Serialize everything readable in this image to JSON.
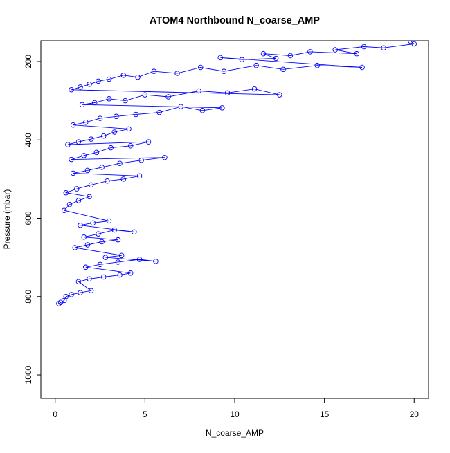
{
  "chart_data": {
    "type": "scatter",
    "title": "ATOM4 Northbound N_coarse_AMP",
    "xlabel": "N_coarse_AMP",
    "ylabel": "Pressure (mbar)",
    "xlim": [
      -0.8,
      20.8
    ],
    "ylim": [
      1060,
      147
    ],
    "y_inverted": true,
    "x_ticks": [
      0,
      5,
      10,
      15,
      20
    ],
    "x_tick_labels": [
      "0",
      "5",
      "10",
      "15",
      "20"
    ],
    "y_ticks": [
      200,
      400,
      600,
      800,
      1000
    ],
    "y_tick_labels": [
      "200",
      "400",
      "600",
      "800",
      "1000"
    ],
    "grid": false,
    "legend": "none",
    "series": [
      {
        "color": "#0000ff",
        "marker": "open-circle",
        "connected": true,
        "points": [
          {
            "x": 19.8,
            "y": 148
          },
          {
            "x": 20.0,
            "y": 155
          },
          {
            "x": 18.3,
            "y": 165
          },
          {
            "x": 17.2,
            "y": 162
          },
          {
            "x": 15.6,
            "y": 170
          },
          {
            "x": 16.8,
            "y": 180
          },
          {
            "x": 14.2,
            "y": 175
          },
          {
            "x": 13.1,
            "y": 185
          },
          {
            "x": 11.6,
            "y": 180
          },
          {
            "x": 12.3,
            "y": 192
          },
          {
            "x": 10.4,
            "y": 195
          },
          {
            "x": 9.2,
            "y": 190
          },
          {
            "x": 17.1,
            "y": 215
          },
          {
            "x": 14.6,
            "y": 210
          },
          {
            "x": 12.7,
            "y": 220
          },
          {
            "x": 11.2,
            "y": 210
          },
          {
            "x": 9.4,
            "y": 225
          },
          {
            "x": 8.1,
            "y": 215
          },
          {
            "x": 6.8,
            "y": 230
          },
          {
            "x": 5.5,
            "y": 225
          },
          {
            "x": 4.6,
            "y": 240
          },
          {
            "x": 3.8,
            "y": 235
          },
          {
            "x": 3.0,
            "y": 245
          },
          {
            "x": 2.4,
            "y": 250
          },
          {
            "x": 1.9,
            "y": 258
          },
          {
            "x": 1.4,
            "y": 265
          },
          {
            "x": 0.9,
            "y": 272
          },
          {
            "x": 12.5,
            "y": 285
          },
          {
            "x": 11.1,
            "y": 270
          },
          {
            "x": 9.6,
            "y": 280
          },
          {
            "x": 8.0,
            "y": 275
          },
          {
            "x": 6.3,
            "y": 290
          },
          {
            "x": 5.0,
            "y": 285
          },
          {
            "x": 3.9,
            "y": 300
          },
          {
            "x": 3.0,
            "y": 295
          },
          {
            "x": 2.2,
            "y": 305
          },
          {
            "x": 1.5,
            "y": 310
          },
          {
            "x": 9.3,
            "y": 318
          },
          {
            "x": 8.2,
            "y": 325
          },
          {
            "x": 7.0,
            "y": 315
          },
          {
            "x": 5.8,
            "y": 330
          },
          {
            "x": 4.5,
            "y": 335
          },
          {
            "x": 3.4,
            "y": 340
          },
          {
            "x": 2.5,
            "y": 345
          },
          {
            "x": 1.7,
            "y": 355
          },
          {
            "x": 1.0,
            "y": 362
          },
          {
            "x": 4.1,
            "y": 372
          },
          {
            "x": 3.3,
            "y": 380
          },
          {
            "x": 2.7,
            "y": 390
          },
          {
            "x": 2.0,
            "y": 398
          },
          {
            "x": 1.3,
            "y": 405
          },
          {
            "x": 0.7,
            "y": 412
          },
          {
            "x": 5.2,
            "y": 405
          },
          {
            "x": 4.2,
            "y": 415
          },
          {
            "x": 3.1,
            "y": 420
          },
          {
            "x": 2.3,
            "y": 432
          },
          {
            "x": 1.6,
            "y": 440
          },
          {
            "x": 0.9,
            "y": 450
          },
          {
            "x": 6.1,
            "y": 445
          },
          {
            "x": 4.8,
            "y": 452
          },
          {
            "x": 3.6,
            "y": 460
          },
          {
            "x": 2.6,
            "y": 470
          },
          {
            "x": 1.8,
            "y": 478
          },
          {
            "x": 1.0,
            "y": 485
          },
          {
            "x": 4.7,
            "y": 492
          },
          {
            "x": 3.8,
            "y": 500
          },
          {
            "x": 2.9,
            "y": 505
          },
          {
            "x": 2.0,
            "y": 515
          },
          {
            "x": 1.2,
            "y": 525
          },
          {
            "x": 0.6,
            "y": 535
          },
          {
            "x": 1.9,
            "y": 545
          },
          {
            "x": 1.3,
            "y": 555
          },
          {
            "x": 0.8,
            "y": 565
          },
          {
            "x": 0.5,
            "y": 580
          },
          {
            "x": 3.0,
            "y": 607
          },
          {
            "x": 2.1,
            "y": 612
          },
          {
            "x": 1.4,
            "y": 618
          },
          {
            "x": 4.4,
            "y": 635
          },
          {
            "x": 3.3,
            "y": 630
          },
          {
            "x": 2.4,
            "y": 640
          },
          {
            "x": 1.6,
            "y": 648
          },
          {
            "x": 3.5,
            "y": 655
          },
          {
            "x": 2.6,
            "y": 660
          },
          {
            "x": 1.8,
            "y": 668
          },
          {
            "x": 1.1,
            "y": 675
          },
          {
            "x": 3.7,
            "y": 695
          },
          {
            "x": 2.8,
            "y": 700
          },
          {
            "x": 5.6,
            "y": 710
          },
          {
            "x": 4.7,
            "y": 705
          },
          {
            "x": 3.5,
            "y": 712
          },
          {
            "x": 2.5,
            "y": 718
          },
          {
            "x": 1.7,
            "y": 725
          },
          {
            "x": 4.2,
            "y": 740
          },
          {
            "x": 3.6,
            "y": 745
          },
          {
            "x": 2.7,
            "y": 750
          },
          {
            "x": 1.9,
            "y": 755
          },
          {
            "x": 1.3,
            "y": 762
          },
          {
            "x": 2.0,
            "y": 785
          },
          {
            "x": 1.4,
            "y": 790
          },
          {
            "x": 0.9,
            "y": 795
          },
          {
            "x": 0.6,
            "y": 800
          },
          {
            "x": 0.5,
            "y": 810
          },
          {
            "x": 0.3,
            "y": 815
          },
          {
            "x": 0.2,
            "y": 818
          }
        ]
      }
    ]
  }
}
